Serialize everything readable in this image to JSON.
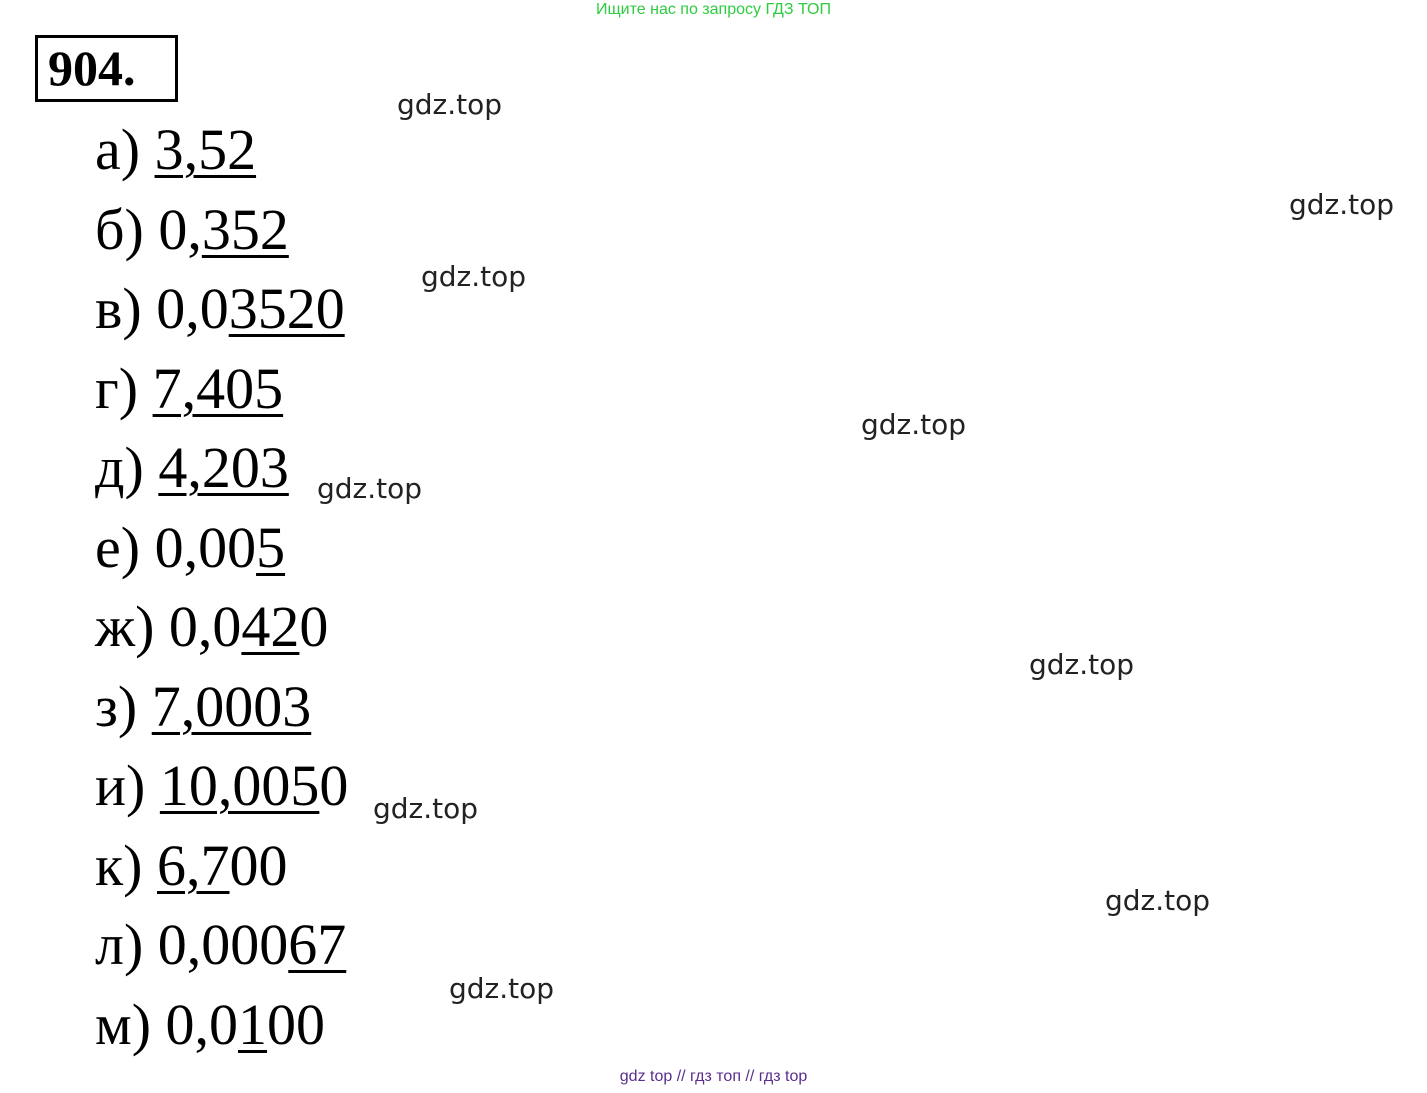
{
  "header_banner": "Ищите нас по запросу ГДЗ ТОП",
  "problem_number": "904.",
  "answers": [
    {
      "label": "а) ",
      "pre": "",
      "underlined": "3,52",
      "post": ""
    },
    {
      "label": "б) ",
      "pre": "0,",
      "underlined": "352",
      "post": ""
    },
    {
      "label": "в) ",
      "pre": "0,0",
      "underlined": "3520",
      "post": ""
    },
    {
      "label": "г) ",
      "pre": "",
      "underlined": "7,405",
      "post": ""
    },
    {
      "label": "д) ",
      "pre": "",
      "underlined": "4,203",
      "post": ""
    },
    {
      "label": "е) ",
      "pre": "0,00",
      "underlined": "5",
      "post": ""
    },
    {
      "label": "ж) ",
      "pre": "0,0",
      "underlined": "42",
      "post": "0"
    },
    {
      "label": "з) ",
      "pre": "",
      "underlined": "7,0003",
      "post": ""
    },
    {
      "label": "и) ",
      "pre": "",
      "underlined": "10,005",
      "post": "0"
    },
    {
      "label": "к) ",
      "pre": "",
      "underlined": "6,7",
      "post": "00"
    },
    {
      "label": "л) ",
      "pre": "0,000",
      "underlined": "67",
      "post": ""
    },
    {
      "label": "м) ",
      "pre": "0,0",
      "underlined": "1",
      "post": "00"
    }
  ],
  "watermarks": [
    "gdz.top",
    "gdz.top",
    "gdz.top",
    "gdz.top",
    "gdz.top",
    "gdz.top",
    "gdz.top",
    "gdz.top",
    "gdz.top"
  ],
  "footer": "gdz top  //  гдз топ  //  гдз top",
  "colors": {
    "banner": "#2ecc40",
    "footer": "#5b2d8e"
  }
}
